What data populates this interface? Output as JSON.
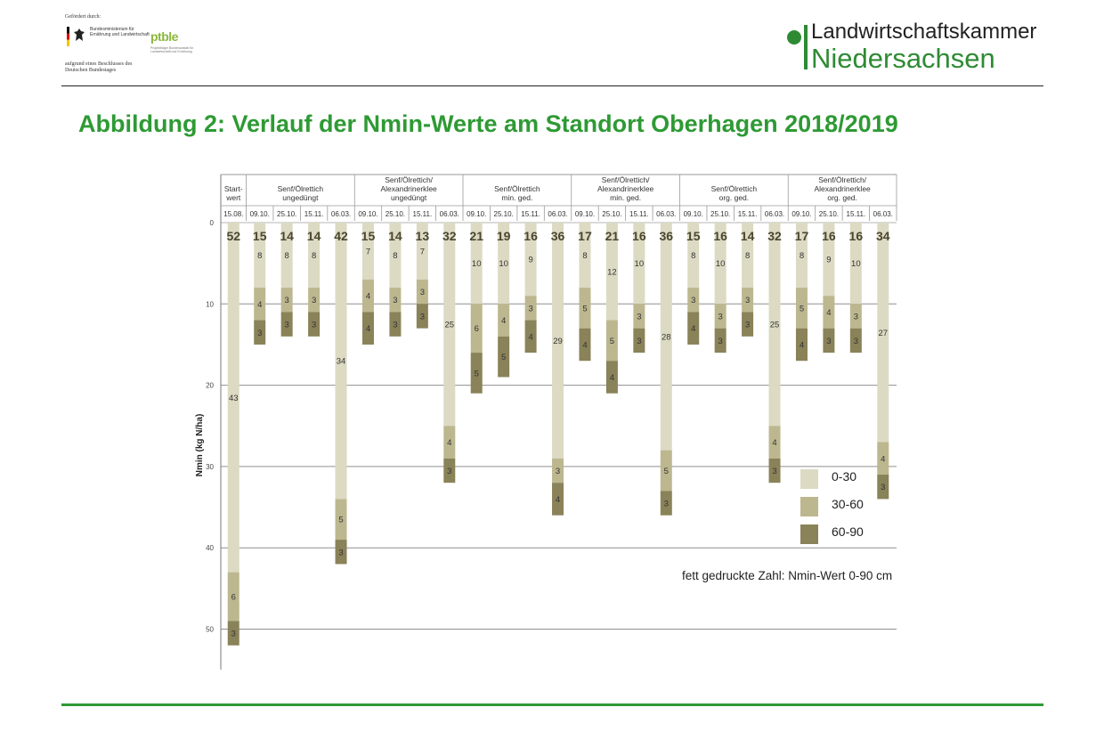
{
  "header": {
    "funded_by": "Gefördert durch:",
    "ministry": "Bundesministerium für Ernährung und Landwirtschaft",
    "bundestag": "aufgrund eines Beschlusses des Deutschen Bundestages",
    "ptble": "ptble",
    "ptble_sub": "Projektträger Bundesanstalt für Landwirtschaft und Ernährung",
    "org_line1": "Landwirtschaftskammer",
    "org_line2": "Niedersachsen"
  },
  "title": "Abbildung 2: Verlauf der Nmin-Werte am Standort Oberhagen 2018/2019",
  "colors": {
    "accent_green": "#2e9a34",
    "layer_0_30": "#dcdac2",
    "layer_30_60": "#bdb78f",
    "layer_60_90": "#8a8258",
    "total_label": "#4a4630"
  },
  "chart_data": {
    "type": "bar",
    "stacked": true,
    "orientation": "downward",
    "title": "Abbildung 2: Verlauf der Nmin-Werte am Standort Oberhagen 2018/2019",
    "ylabel": "Nmin (kg N/ha)",
    "ylim": [
      0,
      55
    ],
    "yticks": [
      0,
      10,
      20,
      30,
      40,
      50
    ],
    "groups": [
      {
        "label": "Start-\nwert",
        "dates": [
          "15.08."
        ]
      },
      {
        "label": "Senf/Ölrettich\nungedüngt",
        "dates": [
          "09.10.",
          "25.10.",
          "15.11.",
          "06.03."
        ]
      },
      {
        "label": "Senf/Ölrettich/\nAlexandrinerklee\nungedüngt",
        "dates": [
          "09.10.",
          "25.10.",
          "15.11.",
          "06.03."
        ]
      },
      {
        "label": "Senf/Ölrettich\nmin. ged.",
        "dates": [
          "09.10.",
          "25.10.",
          "15.11.",
          "06.03."
        ]
      },
      {
        "label": "Senf/Ölrettich/\nAlexandrinerklee\nmin. ged.",
        "dates": [
          "09.10.",
          "25.10.",
          "15.11.",
          "06.03."
        ]
      },
      {
        "label": "Senf/Ölrettich\norg. ged.",
        "dates": [
          "09.10.",
          "25.10.",
          "15.11.",
          "06.03."
        ]
      },
      {
        "label": "Senf/Ölrettich/\nAlexandrinerklee\norg. ged.",
        "dates": [
          "09.10.",
          "25.10.",
          "15.11.",
          "06.03."
        ]
      }
    ],
    "series": [
      {
        "name": "0-30",
        "values": [
          43,
          8,
          8,
          8,
          34,
          7,
          8,
          7,
          25,
          10,
          10,
          9,
          29,
          8,
          12,
          10,
          28,
          8,
          10,
          8,
          25,
          8,
          9,
          10,
          27
        ]
      },
      {
        "name": "30-60",
        "values": [
          6,
          4,
          3,
          3,
          5,
          4,
          3,
          3,
          4,
          6,
          4,
          3,
          3,
          5,
          5,
          3,
          5,
          3,
          3,
          3,
          4,
          5,
          4,
          3,
          4
        ]
      },
      {
        "name": "60-90",
        "values": [
          3,
          3,
          3,
          3,
          3,
          4,
          3,
          3,
          3,
          5,
          5,
          4,
          4,
          4,
          4,
          3,
          3,
          4,
          3,
          3,
          3,
          4,
          3,
          3,
          3
        ]
      }
    ],
    "totals": [
      52,
      15,
      14,
      14,
      42,
      15,
      14,
      13,
      32,
      21,
      19,
      16,
      36,
      17,
      21,
      16,
      36,
      15,
      16,
      14,
      32,
      17,
      16,
      16,
      34
    ],
    "legend": [
      "0-30",
      "30-60",
      "60-90"
    ],
    "legend_position": "right",
    "note": "fett gedruckte Zahl: Nmin-Wert 0-90 cm"
  }
}
